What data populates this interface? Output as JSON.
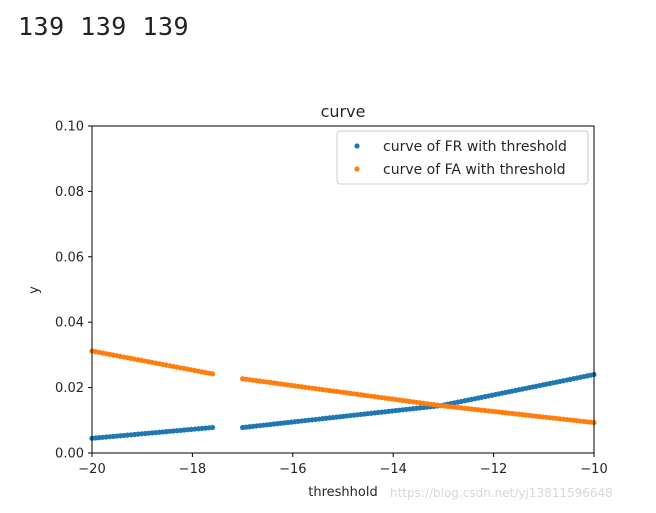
{
  "console": {
    "output_text": "139 139 139"
  },
  "watermark": {
    "text": "https://blog.csdn.net/yj13811596648"
  },
  "chart_data": {
    "type": "scatter",
    "title": "curve",
    "xlabel": "threshhold",
    "ylabel": "y",
    "xlim": [
      -20,
      -10
    ],
    "ylim": [
      0.0,
      0.1
    ],
    "xticks": [
      -20,
      -18,
      -16,
      -14,
      -12,
      -10
    ],
    "xtick_labels": [
      "−20",
      "−18",
      "−16",
      "−14",
      "−12",
      "−10"
    ],
    "yticks": [
      0.0,
      0.02,
      0.04,
      0.06,
      0.08,
      0.1
    ],
    "ytick_labels": [
      "0.00",
      "0.02",
      "0.04",
      "0.06",
      "0.08",
      "0.10"
    ],
    "grid": false,
    "legend_position": "top-right",
    "points_per_series": 139,
    "series": [
      {
        "name": "curve of FR with threshold",
        "color": "#1f77b4",
        "segments": [
          {
            "x_start": -20.0,
            "x_end": -17.6,
            "y_start": 0.0045,
            "y_end": 0.0078
          },
          {
            "x_start": -17.0,
            "x_end": -13.05,
            "y_start": 0.0078,
            "y_end": 0.0145
          },
          {
            "x_start": -13.05,
            "x_end": -10.0,
            "y_start": 0.0145,
            "y_end": 0.024
          }
        ]
      },
      {
        "name": "curve of FA with threshold",
        "color": "#ff7f0e",
        "segments": [
          {
            "x_start": -20.0,
            "x_end": -17.6,
            "y_start": 0.0312,
            "y_end": 0.0242
          },
          {
            "x_start": -17.0,
            "x_end": -13.05,
            "y_start": 0.0227,
            "y_end": 0.0145
          },
          {
            "x_start": -13.05,
            "x_end": -10.0,
            "y_start": 0.0145,
            "y_end": 0.0093
          }
        ]
      }
    ]
  }
}
